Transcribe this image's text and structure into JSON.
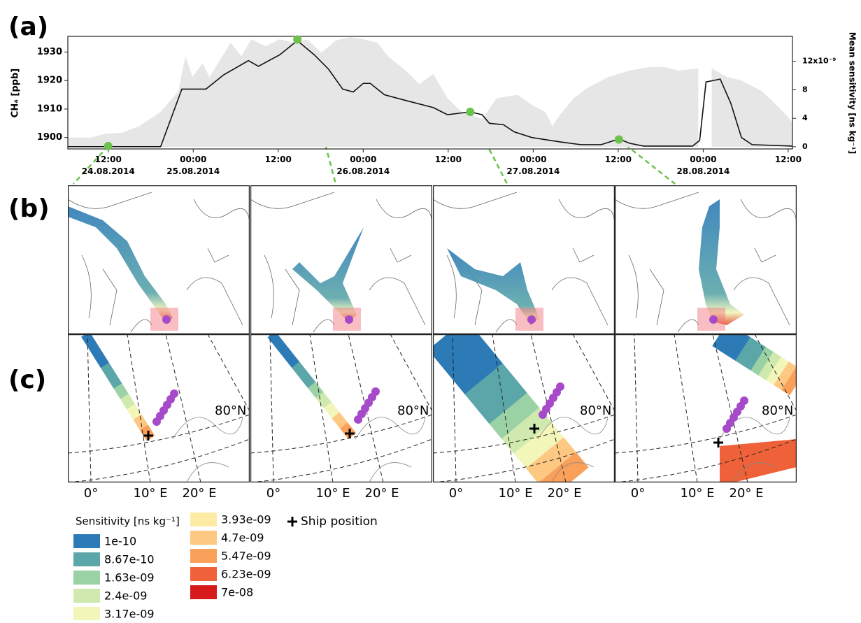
{
  "chart_data": {
    "type": "line-area",
    "panel_label": "(a)",
    "y_label": "CH₄ [ppb]",
    "y2_label": "Mean sensitivity [ns kg⁻¹]",
    "xlim": [
      6.3,
      108.6
    ],
    "xticks": [
      {
        "value": 12,
        "label": "12:00\n24.08.2014"
      },
      {
        "value": 24,
        "label": "00:00\n25.08.2014"
      },
      {
        "value": 36,
        "label": "12:00"
      },
      {
        "value": 48,
        "label": "00:00\n26.08.2014"
      },
      {
        "value": 60,
        "label": "12:00"
      },
      {
        "value": 72,
        "label": "00:00\n27.08.2014"
      },
      {
        "value": 84,
        "label": "12:00"
      },
      {
        "value": 96,
        "label": "00:00\n28.08.2014"
      },
      {
        "value": 108,
        "label": "12:00"
      }
    ],
    "ylim": [
      1896,
      1935.5
    ],
    "yticks": [
      1900,
      1910,
      1920,
      1930
    ],
    "y2lim": [
      -0.3,
      15.5
    ],
    "y2ticks": [
      0,
      4,
      8,
      {
        "value": 12,
        "label": "12x10⁻⁹"
      }
    ],
    "series": [
      {
        "type": "area",
        "axis": "y2",
        "color": "#e6e6e6",
        "x": [
          6.3,
          9.5,
          11.5,
          14.0,
          16.4,
          19.4,
          21.9,
          22.9,
          23.9,
          25.3,
          26.3,
          29.3,
          30.8,
          32.2,
          34.2,
          36.2,
          38.2,
          40.1,
          42.1,
          44.1,
          46.1,
          48.0,
          50.0,
          51.5,
          54.0,
          55.9,
          57.9,
          59.9,
          61.9,
          64.8,
          66.8,
          69.8,
          71.8,
          73.7,
          74.7,
          75.7,
          77.7,
          79.7,
          82.6,
          85.6,
          88.5,
          90.5,
          92.5,
          95.3,
          96.3,
          97.2,
          99.4,
          101.4,
          104.3,
          106.3,
          107.8,
          108.6
        ],
        "values": [
          1.3,
          1.3,
          1.8,
          2.0,
          2.9,
          4.9,
          7.8,
          12.7,
          9.8,
          11.7,
          9.8,
          14.6,
          12.7,
          15.1,
          14.1,
          15.1,
          14.6,
          15.1,
          13.2,
          14.9,
          15.4,
          15.1,
          14.6,
          12.7,
          10.7,
          8.8,
          10.2,
          6.8,
          4.9,
          3.9,
          6.8,
          7.3,
          5.9,
          4.9,
          2.9,
          4.4,
          6.8,
          8.3,
          9.8,
          10.7,
          11.2,
          11.2,
          10.7,
          11.0,
          null,
          11.0,
          9.8,
          9.3,
          7.8,
          5.9,
          4.4,
          3.4
        ]
      },
      {
        "type": "line",
        "color": "#111111",
        "x": [
          6.3,
          19.4,
          22.4,
          25.8,
          28.3,
          31.8,
          33.2,
          36.2,
          38.7,
          41.1,
          43.1,
          45.1,
          46.6,
          48.0,
          49.0,
          51.0,
          54.0,
          57.9,
          59.9,
          63.1,
          64.8,
          65.8,
          67.8,
          69.3,
          71.8,
          75.7,
          78.7,
          81.6,
          84.1,
          85.6,
          87.6,
          94.5,
          95.5,
          96.4,
          98.4,
          99.9,
          101.4,
          102.9,
          108.6
        ],
        "values": [
          1896.8,
          1896.8,
          1917,
          1917,
          1922,
          1927,
          1925,
          1929,
          1934,
          1929,
          1924,
          1917,
          1916,
          1919,
          1919,
          1915,
          1913,
          1910.5,
          1908,
          1909,
          1908,
          1905,
          1904.5,
          1902,
          1900,
          1898.5,
          1897.5,
          1897.5,
          1899.5,
          1898,
          1897,
          1897,
          1899,
          1919.5,
          1920.5,
          1912,
          1900,
          1897.5,
          1897
        ]
      }
    ],
    "highlight_points": {
      "color": "#6cc24a",
      "x": [
        12,
        38.7,
        63.1,
        84.1
      ],
      "y": [
        1897,
        1934.4,
        1909,
        1899.3
      ]
    }
  },
  "maps": {
    "panel_labels": [
      "(b)",
      "(c)"
    ],
    "parallel_label": "80°N",
    "lon_labels": [
      "0°",
      "10° E",
      "20° E"
    ]
  },
  "legend": {
    "title": "Sensitivity [ns kg⁻¹]",
    "items": [
      {
        "label": "1e-10",
        "color": "#2c7bb6"
      },
      {
        "label": "8.67e-10",
        "color": "#5ba6a9"
      },
      {
        "label": "1.63e-09",
        "color": "#9ad1a5"
      },
      {
        "label": "2.4e-09",
        "color": "#cfe9ae"
      },
      {
        "label": "3.17e-09",
        "color": "#f3f6b9"
      },
      {
        "label": "3.93e-09",
        "color": "#fdeaa5"
      },
      {
        "label": "4.7e-09",
        "color": "#fdc982"
      },
      {
        "label": "5.47e-09",
        "color": "#f9a05b"
      },
      {
        "label": "6.23e-09",
        "color": "#ee6139"
      },
      {
        "label": "7e-08",
        "color": "#d7191c"
      }
    ],
    "ship": "Ship position"
  }
}
